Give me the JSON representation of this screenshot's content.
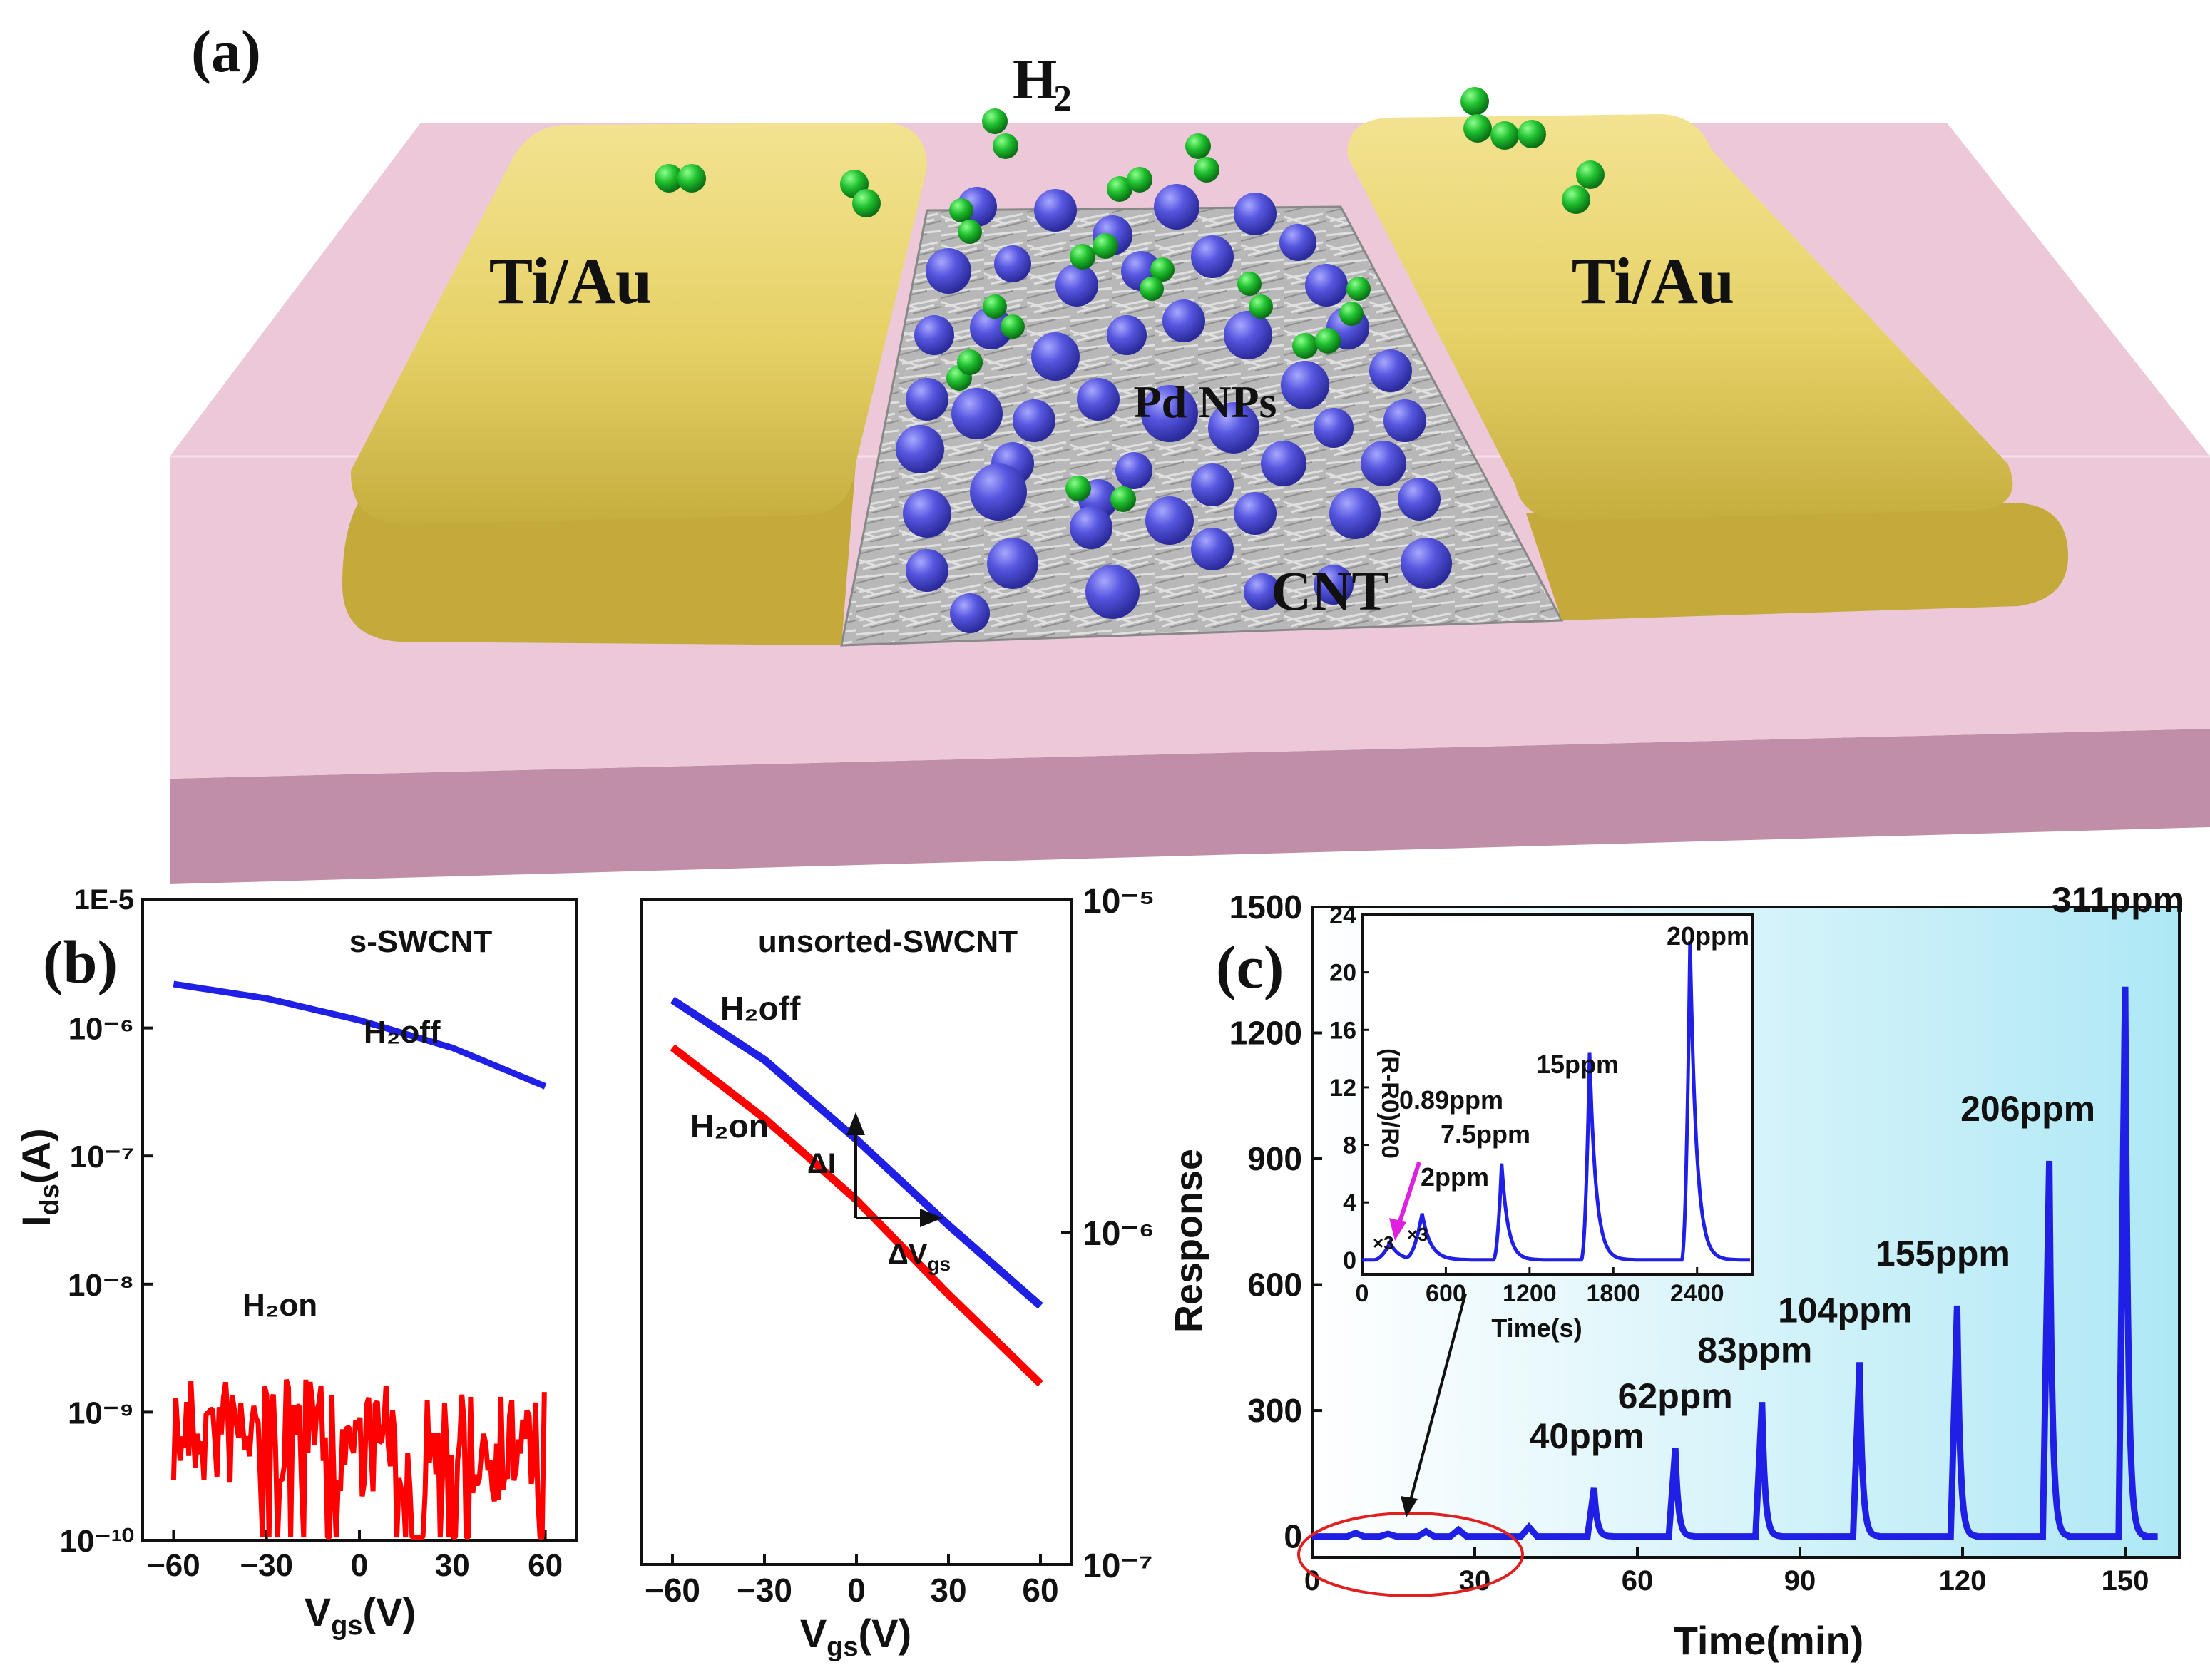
{
  "panel_a": {
    "label": "(a)",
    "gas_label": "H",
    "gas_sub": "2",
    "electrode_left": "Ti/Au",
    "electrode_right": "Ti/Au",
    "np_label": "Pd NPs",
    "channel_label": "CNT",
    "colors": {
      "substrate": "#e8c6d6",
      "electrode": "#e3cf62",
      "pd": "#5555d8",
      "h2": "#1fae2e",
      "cnt": "#b4b4b4"
    }
  },
  "panel_b": {
    "label": "(b)",
    "left": {
      "title": "s-SWCNT",
      "ylabel_main": "I",
      "ylabel_sub": "ds",
      "ylabel_tail": "(A)",
      "xlabel_main": "V",
      "xlabel_sub": "gs",
      "xlabel_tail": "(V)",
      "ytick_top": "1E-5",
      "off_label": "H₂off",
      "on_label": "H₂on"
    },
    "right": {
      "title": "unsorted-SWCNT",
      "xlabel_main": "V",
      "xlabel_sub": "gs",
      "xlabel_tail": "(V)",
      "off_label": "H₂off",
      "on_label": "H₂on",
      "delta_i": "ΔI",
      "delta_v_main": "ΔV",
      "delta_v_sub": "gs"
    }
  },
  "panel_c": {
    "label": "(c)",
    "inset": {
      "ylabel": "(R-R0)/R0",
      "xlabel": "Time(s)",
      "x3a": "×3",
      "x3b": "×3"
    }
  },
  "chart_data": [
    {
      "type": "line",
      "title": "s-SWCNT",
      "xlabel": "Vgs(V)",
      "ylabel": "Ids(A)",
      "yscale": "log",
      "xlim": [
        -70,
        70
      ],
      "ylim": [
        1e-10,
        1e-05
      ],
      "xticks": [
        -60,
        -30,
        0,
        30,
        60
      ],
      "xtick_labels": [
        "−60",
        "−30",
        "0",
        "30",
        "60"
      ],
      "yticks": [
        1e-10,
        1e-09,
        1e-08,
        1e-07,
        1e-06,
        1e-05
      ],
      "ytick_labels": [
        "10⁻¹⁰",
        "10⁻⁹",
        "10⁻⁸",
        "10⁻⁷",
        "10⁻⁶",
        "1E-5"
      ],
      "series": [
        {
          "name": "H2off",
          "color": "#1f1fe6",
          "x": [
            -60,
            -30,
            0,
            30,
            60
          ],
          "y": [
            2.2e-06,
            1.7e-06,
            1.15e-06,
            7e-07,
            3.5e-07
          ]
        },
        {
          "name": "H2on",
          "color": "#ff0000",
          "style": "noisy",
          "x_range": [
            -60,
            60
          ],
          "level": [
            2e-09,
            1.5e-09
          ],
          "floor": 1e-10
        }
      ]
    },
    {
      "type": "line",
      "title": "unsorted-SWCNT",
      "xlabel": "Vgs(V)",
      "yscale": "log",
      "xlim": [
        -70,
        70
      ],
      "ylim": [
        1e-07,
        1e-05
      ],
      "xticks": [
        -60,
        -30,
        0,
        30,
        60
      ],
      "xtick_labels": [
        "−60",
        "−30",
        "0",
        "30",
        "60"
      ],
      "yticks": [
        1e-07,
        1e-06,
        1e-05
      ],
      "ytick_labels": [
        "10⁻⁷",
        "10⁻⁶",
        "10⁻⁵"
      ],
      "series": [
        {
          "name": "H2off",
          "color": "#1f1fe6",
          "x": [
            -60,
            -30,
            0,
            30,
            60
          ],
          "y": [
            5e-06,
            3.3e-06,
            1.9e-06,
            1.05e-06,
            6e-07
          ]
        },
        {
          "name": "H2on",
          "color": "#ff0000",
          "x": [
            -60,
            -30,
            0,
            30,
            60
          ],
          "y": [
            3.6e-06,
            2.2e-06,
            1.25e-06,
            6.5e-07,
            3.5e-07
          ]
        }
      ]
    },
    {
      "type": "line",
      "xlabel": "Time(min)",
      "ylabel": "Response",
      "xlim": [
        0,
        160
      ],
      "ylim": [
        -50,
        1500
      ],
      "xticks": [
        0,
        30,
        60,
        90,
        120,
        150
      ],
      "yticks": [
        0,
        300,
        600,
        900,
        1200,
        1500
      ],
      "peaks": [
        {
          "label": "40ppm",
          "t": 52,
          "value": 115
        },
        {
          "label": "62ppm",
          "t": 67,
          "value": 210
        },
        {
          "label": "83ppm",
          "t": 83,
          "value": 320
        },
        {
          "label": "104ppm",
          "t": 101,
          "value": 415
        },
        {
          "label": "155ppm",
          "t": 119,
          "value": 550
        },
        {
          "label": "206ppm",
          "t": 136,
          "value": 895
        },
        {
          "label": "311ppm",
          "t": 150,
          "value": 1310
        }
      ],
      "small_peaks_t": [
        8,
        14,
        21,
        27,
        40
      ],
      "small_peaks_value": [
        8,
        6,
        12,
        16,
        22
      ],
      "color": "#1f1fe6",
      "highlight": "red ellipse around 0-45 min low-concentration region"
    },
    {
      "type": "line",
      "role": "inset",
      "xlabel": "Time(s)",
      "ylabel": "(R-R0)/R0",
      "xlim": [
        0,
        2800
      ],
      "ylim": [
        -1,
        24
      ],
      "xticks": [
        0,
        600,
        1200,
        1800,
        2400
      ],
      "yticks": [
        0,
        4,
        8,
        12,
        16,
        20,
        24
      ],
      "peaks": [
        {
          "label": "0.89ppm",
          "t": 200,
          "value": 1.2
        },
        {
          "label": "2ppm",
          "t": 430,
          "value": 3.2
        },
        {
          "label": "7.5ppm",
          "t": 1000,
          "value": 6.7
        },
        {
          "label": "15ppm",
          "t": 1630,
          "value": 14.4
        },
        {
          "label": "20ppm",
          "t": 2350,
          "value": 22.2
        }
      ],
      "color": "#1f1fe6"
    }
  ]
}
